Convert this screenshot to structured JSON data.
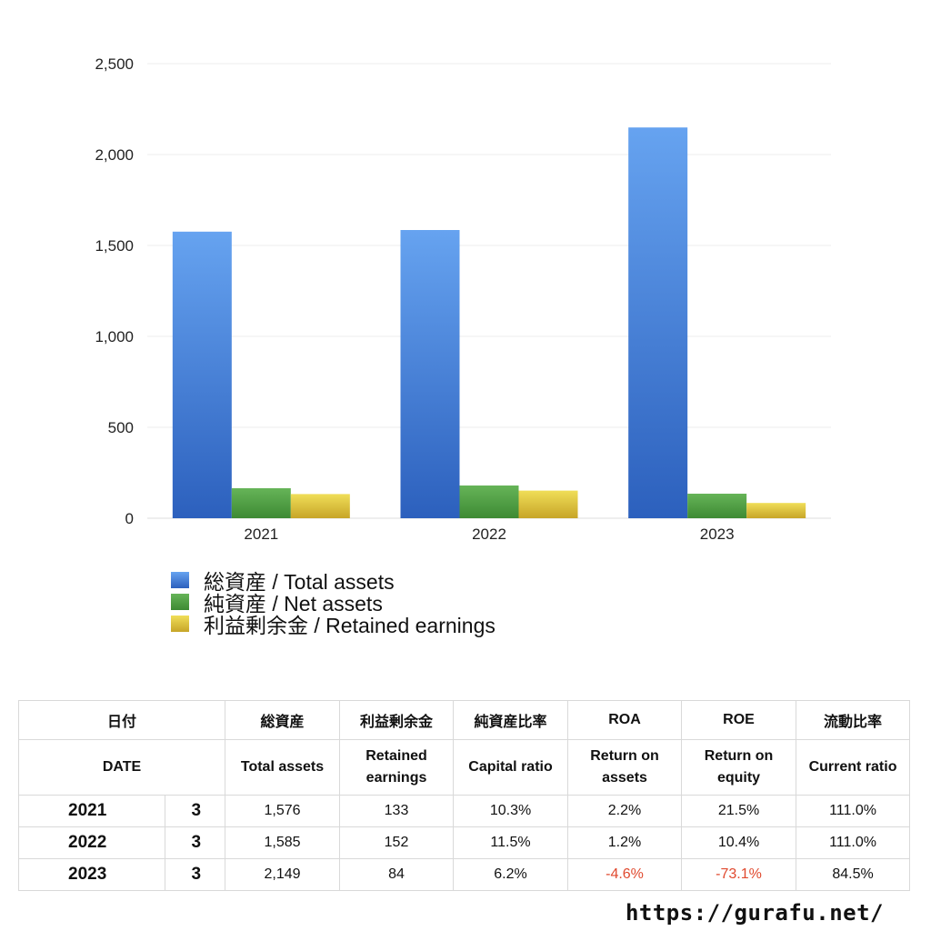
{
  "chart_data": {
    "type": "bar",
    "categories": [
      "2021",
      "2022",
      "2023"
    ],
    "series": [
      {
        "name": "総資産 / Total assets",
        "values": [
          1576,
          1585,
          2149
        ],
        "color": "#4a86dd"
      },
      {
        "name": "純資産 / Net assets",
        "values": [
          165,
          180,
          135
        ],
        "color": "#4fa043"
      },
      {
        "name": "利益剰余金 / Retained earnings",
        "values": [
          133,
          152,
          84
        ],
        "color": "#d9c23a"
      }
    ],
    "ylim": [
      0,
      2500
    ],
    "yticks": [
      "0",
      "500",
      "1,000",
      "1,500",
      "2,000",
      "2,500"
    ],
    "ytick_values": [
      0,
      500,
      1000,
      1500,
      2000,
      2500
    ],
    "grid": true,
    "legend_position": "bottom-left",
    "title": "",
    "xlabel": "",
    "ylabel": ""
  },
  "table": {
    "headers_jp": [
      "日付",
      "総資産",
      "利益剰余金",
      "純資産比率",
      "ROA",
      "ROE",
      "流動比率"
    ],
    "headers_en": [
      "DATE",
      "Total assets",
      "Retained earnings",
      "Capital ratio",
      "Return on assets",
      "Return on equity",
      "Current ratio"
    ],
    "rows": [
      {
        "year": "2021",
        "month": "3",
        "total_assets": "1,576",
        "retained": "133",
        "capital_ratio": "10.3%",
        "roa": "2.2%",
        "roe": "21.5%",
        "current_ratio": "111.0%"
      },
      {
        "year": "2022",
        "month": "3",
        "total_assets": "1,585",
        "retained": "152",
        "capital_ratio": "11.5%",
        "roa": "1.2%",
        "roe": "10.4%",
        "current_ratio": "111.0%"
      },
      {
        "year": "2023",
        "month": "3",
        "total_assets": "2,149",
        "retained": "84",
        "capital_ratio": "6.2%",
        "roa": "-4.6%",
        "roe": "-73.1%",
        "current_ratio": "84.5%"
      }
    ]
  },
  "footer": {
    "url": "https://gurafu.net/"
  }
}
